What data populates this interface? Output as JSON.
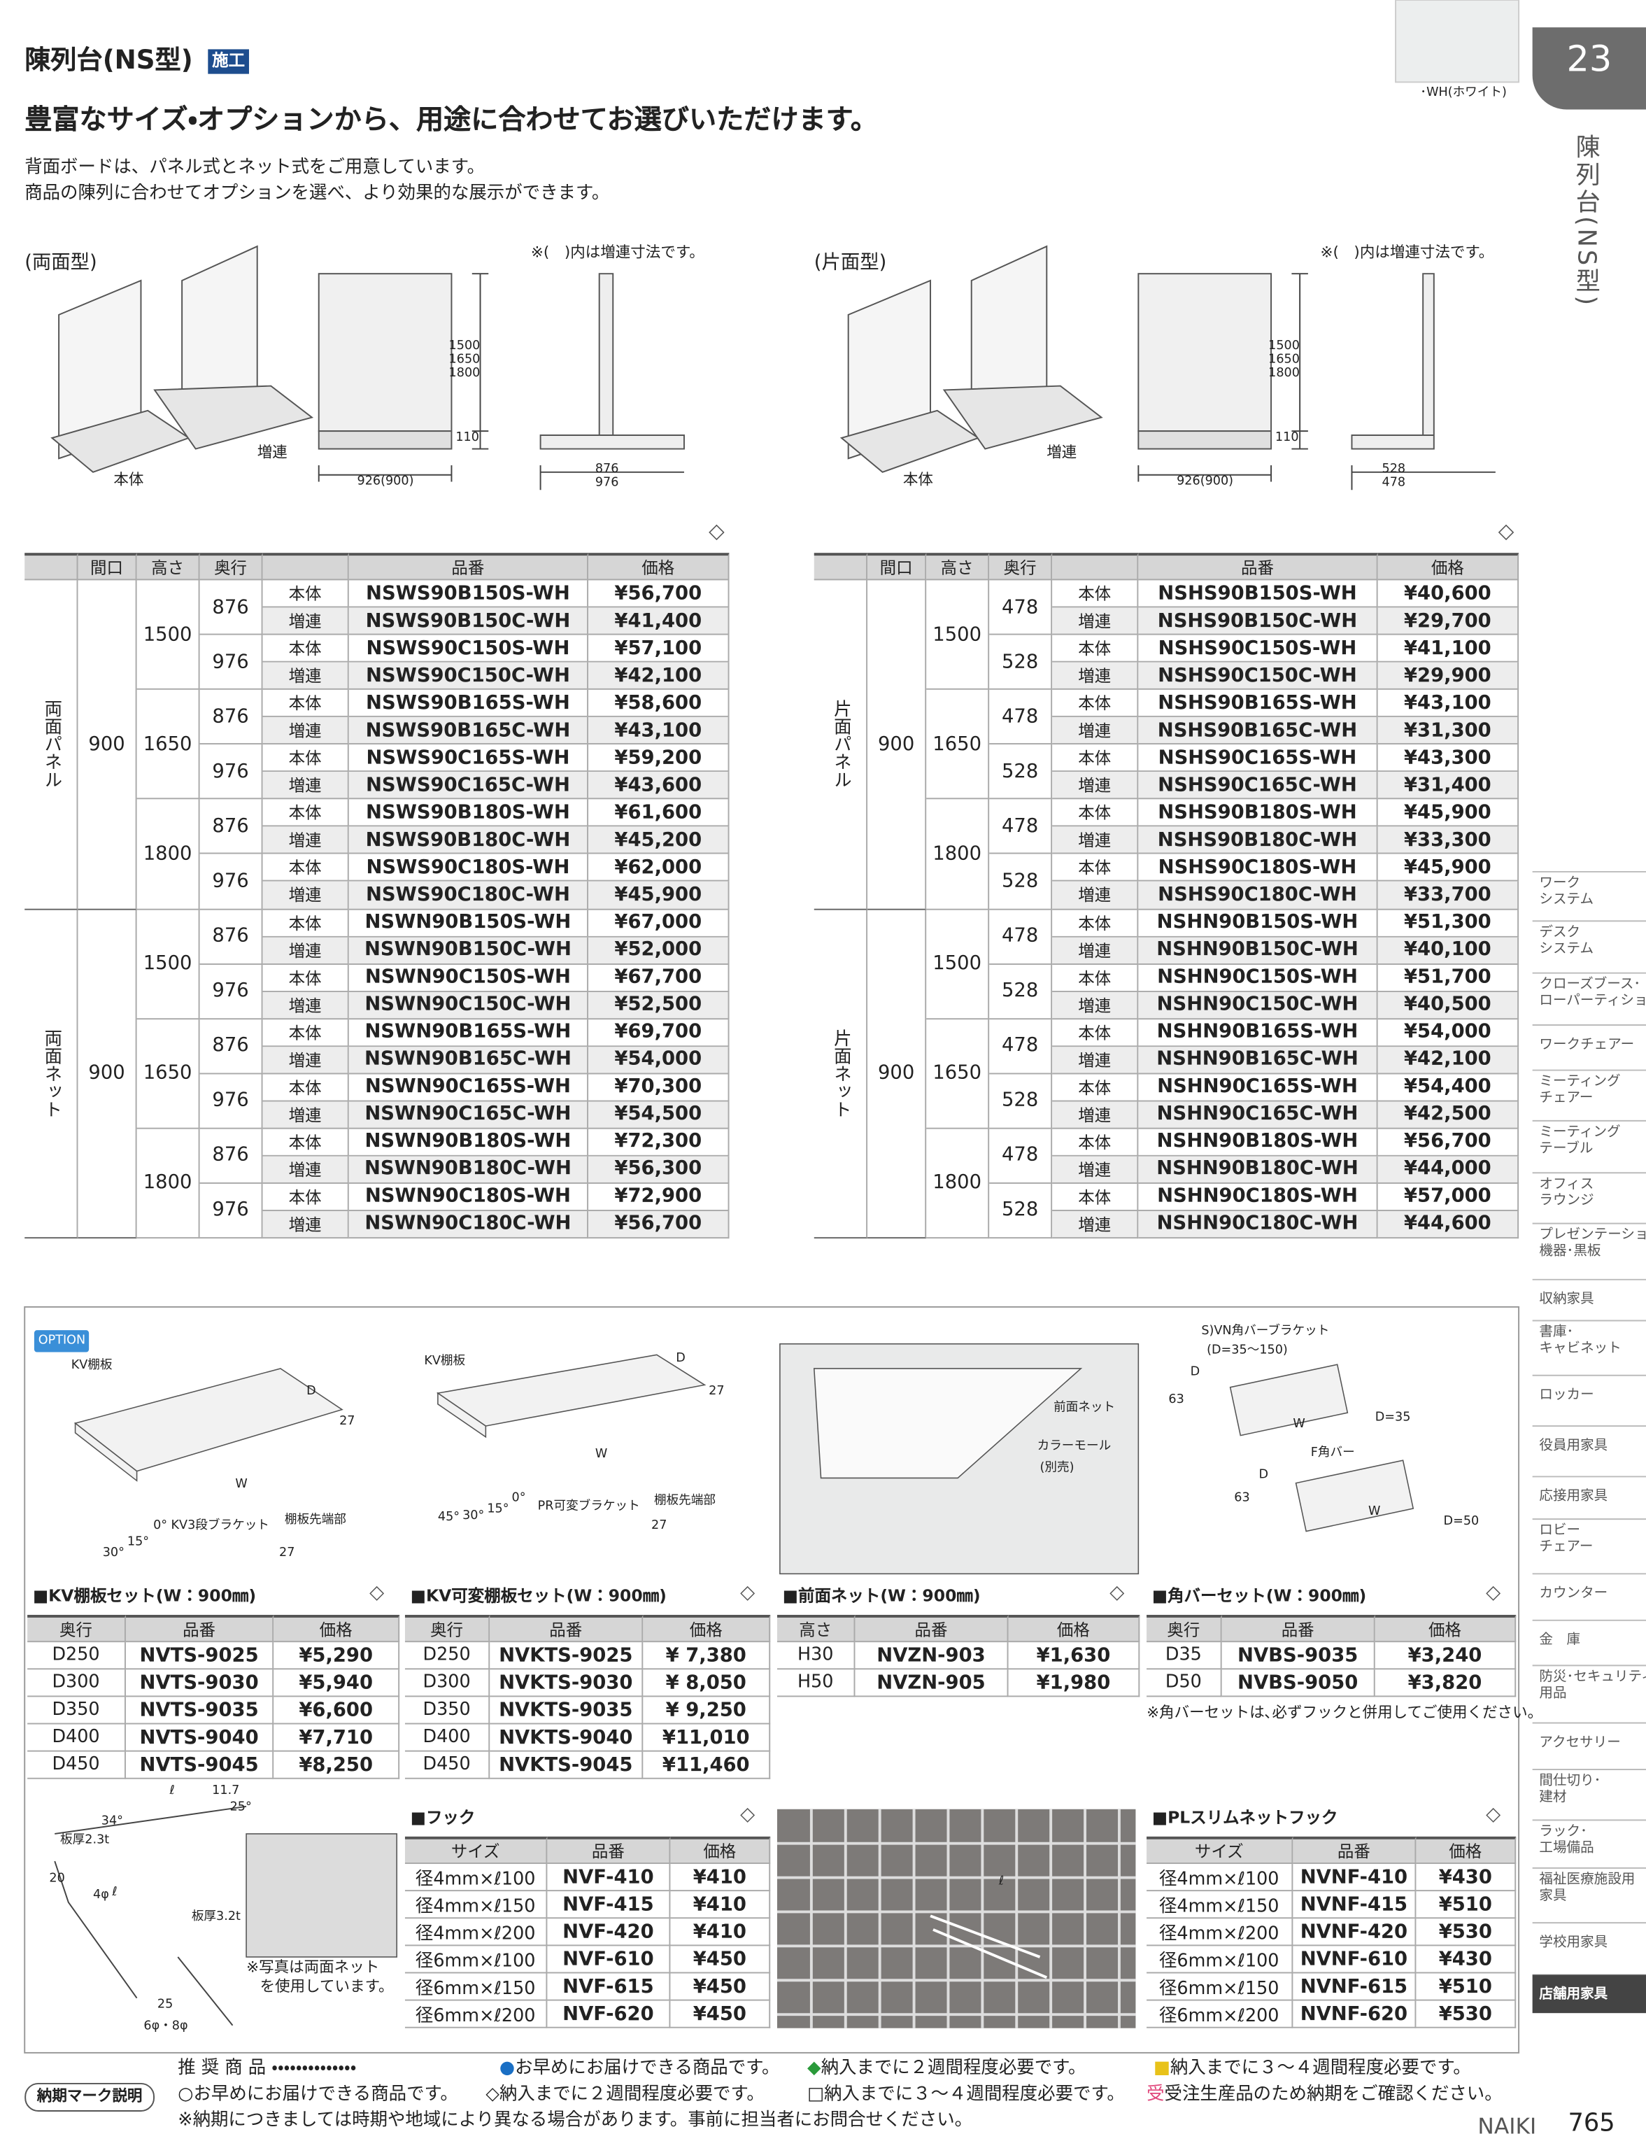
{
  "header": {
    "title": "陳列台(NS型)",
    "badge": "施工",
    "page_tab": "23",
    "color_caption": "･WH(ホワイト)",
    "headline": "豊富なサイズ・オプションから、用途に合わせてお選びいただけます。",
    "intro": [
      "背面ボードは、パネル式とネット式をご用意しています。",
      "商品の陳列に合わせてオプションを選べ、より効果的な展示ができます。"
    ]
  },
  "side": {
    "label": "陳列台(NS型)",
    "nav": [
      [
        "ワーク",
        "システム"
      ],
      [
        "デスク",
        "システム"
      ],
      [
        "クローズブース･",
        "ローパーティション"
      ],
      [
        "ワークチェアー"
      ],
      [
        "ミーティング",
        "チェアー"
      ],
      [
        "ミーティング",
        "テーブル"
      ],
      [
        "オフィス",
        "ラウンジ"
      ],
      [
        "プレゼンテーション",
        "機器･黒板"
      ],
      [
        "収納家具"
      ],
      [
        "書庫･",
        "キャビネット"
      ],
      [
        "ロッカー"
      ],
      [
        "役員用家具"
      ],
      [
        "応接用家具"
      ],
      [
        "ロビー",
        "チェアー"
      ],
      [
        "カウンター"
      ],
      [
        "金　庫"
      ],
      [
        "防災･セキュリティー",
        "用品"
      ],
      [
        "アクセサリー"
      ],
      [
        "間仕切り･",
        "建材"
      ],
      [
        "ラック･",
        "工場備品"
      ],
      [
        "福祉医療施設用",
        "家具"
      ],
      [
        "学校用家具"
      ],
      [
        "店舗用家具"
      ]
    ]
  },
  "models": [
    {
      "label": "(両面型)",
      "note": "※(　)内は増連寸法です。",
      "diagram": {
        "main": "本体",
        "add": "増連",
        "heights": [
          "1500",
          "1650",
          "1800"
        ],
        "base": "110",
        "width": "926(900)",
        "depths": [
          "876",
          "976"
        ]
      },
      "mark": "◇",
      "table": {
        "columns": [
          "間口",
          "高さ",
          "奥行",
          "品番",
          "価格"
        ],
        "groups": [
          {
            "label": "両面パネル",
            "width": "900",
            "heights": [
              {
                "height": "1500",
                "depths": [
                  {
                    "depth": "876",
                    "rows": [
                      [
                        "本体",
                        "NSWS90B150S-WH",
                        "¥56,700"
                      ],
                      [
                        "増連",
                        "NSWS90B150C-WH",
                        "¥41,400"
                      ]
                    ]
                  },
                  {
                    "depth": "976",
                    "rows": [
                      [
                        "本体",
                        "NSWS90C150S-WH",
                        "¥57,100"
                      ],
                      [
                        "増連",
                        "NSWS90C150C-WH",
                        "¥42,100"
                      ]
                    ]
                  }
                ]
              },
              {
                "height": "1650",
                "depths": [
                  {
                    "depth": "876",
                    "rows": [
                      [
                        "本体",
                        "NSWS90B165S-WH",
                        "¥58,600"
                      ],
                      [
                        "増連",
                        "NSWS90B165C-WH",
                        "¥43,100"
                      ]
                    ]
                  },
                  {
                    "depth": "976",
                    "rows": [
                      [
                        "本体",
                        "NSWS90C165S-WH",
                        "¥59,200"
                      ],
                      [
                        "増連",
                        "NSWS90C165C-WH",
                        "¥43,600"
                      ]
                    ]
                  }
                ]
              },
              {
                "height": "1800",
                "depths": [
                  {
                    "depth": "876",
                    "rows": [
                      [
                        "本体",
                        "NSWS90B180S-WH",
                        "¥61,600"
                      ],
                      [
                        "増連",
                        "NSWS90B180C-WH",
                        "¥45,200"
                      ]
                    ]
                  },
                  {
                    "depth": "976",
                    "rows": [
                      [
                        "本体",
                        "NSWS90C180S-WH",
                        "¥62,000"
                      ],
                      [
                        "増連",
                        "NSWS90C180C-WH",
                        "¥45,900"
                      ]
                    ]
                  }
                ]
              }
            ]
          },
          {
            "label": "両面ネット",
            "width": "900",
            "heights": [
              {
                "height": "1500",
                "depths": [
                  {
                    "depth": "876",
                    "rows": [
                      [
                        "本体",
                        "NSWN90B150S-WH",
                        "¥67,000"
                      ],
                      [
                        "増連",
                        "NSWN90B150C-WH",
                        "¥52,000"
                      ]
                    ]
                  },
                  {
                    "depth": "976",
                    "rows": [
                      [
                        "本体",
                        "NSWN90C150S-WH",
                        "¥67,700"
                      ],
                      [
                        "増連",
                        "NSWN90C150C-WH",
                        "¥52,500"
                      ]
                    ]
                  }
                ]
              },
              {
                "height": "1650",
                "depths": [
                  {
                    "depth": "876",
                    "rows": [
                      [
                        "本体",
                        "NSWN90B165S-WH",
                        "¥69,700"
                      ],
                      [
                        "増連",
                        "NSWN90B165C-WH",
                        "¥54,000"
                      ]
                    ]
                  },
                  {
                    "depth": "976",
                    "rows": [
                      [
                        "本体",
                        "NSWN90C165S-WH",
                        "¥70,300"
                      ],
                      [
                        "増連",
                        "NSWN90C165C-WH",
                        "¥54,500"
                      ]
                    ]
                  }
                ]
              },
              {
                "height": "1800",
                "depths": [
                  {
                    "depth": "876",
                    "rows": [
                      [
                        "本体",
                        "NSWN90B180S-WH",
                        "¥72,300"
                      ],
                      [
                        "増連",
                        "NSWN90B180C-WH",
                        "¥56,300"
                      ]
                    ]
                  },
                  {
                    "depth": "976",
                    "rows": [
                      [
                        "本体",
                        "NSWN90C180S-WH",
                        "¥72,900"
                      ],
                      [
                        "増連",
                        "NSWN90C180C-WH",
                        "¥56,700"
                      ]
                    ]
                  }
                ]
              }
            ]
          }
        ]
      }
    },
    {
      "label": "(片面型)",
      "note": "※(　)内は増連寸法です。",
      "diagram": {
        "main": "本体",
        "add": "増連",
        "heights": [
          "1500",
          "1650",
          "1800"
        ],
        "base": "110",
        "width": "926(900)",
        "depths": [
          "528",
          "478"
        ]
      },
      "mark": "◇",
      "table": {
        "columns": [
          "間口",
          "高さ",
          "奥行",
          "品番",
          "価格"
        ],
        "groups": [
          {
            "label": "片面パネル",
            "width": "900",
            "heights": [
              {
                "height": "1500",
                "depths": [
                  {
                    "depth": "478",
                    "rows": [
                      [
                        "本体",
                        "NSHS90B150S-WH",
                        "¥40,600"
                      ],
                      [
                        "増連",
                        "NSHS90B150C-WH",
                        "¥29,700"
                      ]
                    ]
                  },
                  {
                    "depth": "528",
                    "rows": [
                      [
                        "本体",
                        "NSHS90C150S-WH",
                        "¥41,100"
                      ],
                      [
                        "増連",
                        "NSHS90C150C-WH",
                        "¥29,900"
                      ]
                    ]
                  }
                ]
              },
              {
                "height": "1650",
                "depths": [
                  {
                    "depth": "478",
                    "rows": [
                      [
                        "本体",
                        "NSHS90B165S-WH",
                        "¥43,100"
                      ],
                      [
                        "増連",
                        "NSHS90B165C-WH",
                        "¥31,300"
                      ]
                    ]
                  },
                  {
                    "depth": "528",
                    "rows": [
                      [
                        "本体",
                        "NSHS90C165S-WH",
                        "¥43,300"
                      ],
                      [
                        "増連",
                        "NSHS90C165C-WH",
                        "¥31,400"
                      ]
                    ]
                  }
                ]
              },
              {
                "height": "1800",
                "depths": [
                  {
                    "depth": "478",
                    "rows": [
                      [
                        "本体",
                        "NSHS90B180S-WH",
                        "¥45,900"
                      ],
                      [
                        "増連",
                        "NSHS90B180C-WH",
                        "¥33,300"
                      ]
                    ]
                  },
                  {
                    "depth": "528",
                    "rows": [
                      [
                        "本体",
                        "NSHS90C180S-WH",
                        "¥45,900"
                      ],
                      [
                        "増連",
                        "NSHS90C180C-WH",
                        "¥33,700"
                      ]
                    ]
                  }
                ]
              }
            ]
          },
          {
            "label": "片面ネット",
            "width": "900",
            "heights": [
              {
                "height": "1500",
                "depths": [
                  {
                    "depth": "478",
                    "rows": [
                      [
                        "本体",
                        "NSHN90B150S-WH",
                        "¥51,300"
                      ],
                      [
                        "増連",
                        "NSHN90B150C-WH",
                        "¥40,100"
                      ]
                    ]
                  },
                  {
                    "depth": "528",
                    "rows": [
                      [
                        "本体",
                        "NSHN90C150S-WH",
                        "¥51,700"
                      ],
                      [
                        "増連",
                        "NSHN90C150C-WH",
                        "¥40,500"
                      ]
                    ]
                  }
                ]
              },
              {
                "height": "1650",
                "depths": [
                  {
                    "depth": "478",
                    "rows": [
                      [
                        "本体",
                        "NSHN90B165S-WH",
                        "¥54,000"
                      ],
                      [
                        "増連",
                        "NSHN90B165C-WH",
                        "¥42,100"
                      ]
                    ]
                  },
                  {
                    "depth": "528",
                    "rows": [
                      [
                        "本体",
                        "NSHN90C165S-WH",
                        "¥54,400"
                      ],
                      [
                        "増連",
                        "NSHN90C165C-WH",
                        "¥42,500"
                      ]
                    ]
                  }
                ]
              },
              {
                "height": "1800",
                "depths": [
                  {
                    "depth": "478",
                    "rows": [
                      [
                        "本体",
                        "NSHN90B180S-WH",
                        "¥56,700"
                      ],
                      [
                        "増連",
                        "NSHN90B180C-WH",
                        "¥44,000"
                      ]
                    ]
                  },
                  {
                    "depth": "528",
                    "rows": [
                      [
                        "本体",
                        "NSHN90C180S-WH",
                        "¥57,000"
                      ],
                      [
                        "増連",
                        "NSHN90C180C-WH",
                        "¥44,600"
                      ]
                    ]
                  }
                ]
              }
            ]
          }
        ]
      }
    }
  ],
  "options": {
    "badge": "OPTION",
    "figure_labels": [
      "KV棚板",
      "D",
      "27",
      "W",
      "0°",
      "15°",
      "30°",
      "KV3段ブラケット",
      "棚板先端部",
      "27",
      "KV棚板",
      "D",
      "27",
      "W",
      "0°",
      "15°",
      "30°",
      "45°",
      "PR可変ブラケット",
      "棚板先端部",
      "27",
      "前面ネット",
      "カラーモール",
      "(別売)",
      "S)VN角バーブラケット",
      "(D=35～150)",
      "D",
      "63",
      "W",
      "D=35",
      "F角バー",
      "D",
      "63",
      "W",
      "D=50",
      "ℓ",
      "11.7",
      "25°",
      "34°",
      "板厚2.3t",
      "20",
      "4φ",
      "板厚3.2t",
      "ℓ",
      "25",
      "6φ・8φ",
      "ℓ"
    ],
    "photo_note": [
      "※写真は両面ネット",
      "を使用しています。"
    ],
    "tables": [
      {
        "title": "■KV棚板セット(W：900㎜)",
        "mark": "◇",
        "columns": [
          "奥行",
          "品番",
          "価格"
        ],
        "rows": [
          [
            "D250",
            "NVTS-9025",
            "¥5,290"
          ],
          [
            "D300",
            "NVTS-9030",
            "¥5,940"
          ],
          [
            "D350",
            "NVTS-9035",
            "¥6,600"
          ],
          [
            "D400",
            "NVTS-9040",
            "¥7,710"
          ],
          [
            "D450",
            "NVTS-9045",
            "¥8,250"
          ]
        ]
      },
      {
        "title": "■KV可変棚板セット(W：900㎜)",
        "mark": "◇",
        "columns": [
          "奥行",
          "品番",
          "価格"
        ],
        "rows": [
          [
            "D250",
            "NVKTS-9025",
            "¥ 7,380"
          ],
          [
            "D300",
            "NVKTS-9030",
            "¥ 8,050"
          ],
          [
            "D350",
            "NVKTS-9035",
            "¥ 9,250"
          ],
          [
            "D400",
            "NVKTS-9040",
            "¥11,010"
          ],
          [
            "D450",
            "NVKTS-9045",
            "¥11,460"
          ]
        ]
      },
      {
        "title": "■前面ネット(W：900㎜)",
        "mark": "◇",
        "columns": [
          "高さ",
          "品番",
          "価格"
        ],
        "rows": [
          [
            "H30",
            "NVZN-903",
            "¥1,630"
          ],
          [
            "H50",
            "NVZN-905",
            "¥1,980"
          ]
        ]
      },
      {
        "title": "■角バーセット(W：900㎜)",
        "mark": "◇",
        "columns": [
          "奥行",
          "品番",
          "価格"
        ],
        "rows": [
          [
            "D35",
            "NVBS-9035",
            "¥3,240"
          ],
          [
            "D50",
            "NVBS-9050",
            "¥3,820"
          ]
        ],
        "note": "※角バーセットは､必ずフックと併用してご使用ください。"
      },
      {
        "title": "■フック",
        "mark": "◇",
        "columns": [
          "サイズ",
          "品番",
          "価格"
        ],
        "rows": [
          [
            "径4mm×ℓ100",
            "NVF-410",
            "¥410"
          ],
          [
            "径4mm×ℓ150",
            "NVF-415",
            "¥410"
          ],
          [
            "径4mm×ℓ200",
            "NVF-420",
            "¥410"
          ],
          [
            "径6mm×ℓ100",
            "NVF-610",
            "¥450"
          ],
          [
            "径6mm×ℓ150",
            "NVF-615",
            "¥450"
          ],
          [
            "径6mm×ℓ200",
            "NVF-620",
            "¥450"
          ]
        ]
      },
      {
        "title": "■PLスリムネットフック",
        "mark": "◇",
        "columns": [
          "サイズ",
          "品番",
          "価格"
        ],
        "rows": [
          [
            "径4mm×ℓ100",
            "NVNF-410",
            "¥430"
          ],
          [
            "径4mm×ℓ150",
            "NVNF-415",
            "¥510"
          ],
          [
            "径4mm×ℓ200",
            "NVNF-420",
            "¥530"
          ],
          [
            "径6mm×ℓ100",
            "NVNF-610",
            "¥430"
          ],
          [
            "径6mm×ℓ150",
            "NVNF-615",
            "¥510"
          ],
          [
            "径6mm×ℓ200",
            "NVNF-620",
            "¥530"
          ]
        ]
      }
    ]
  },
  "footer": {
    "recommended": "推 奨 商 品 ・・・・・・・・・・・・・・",
    "rec_items": [
      "●お早めにお届けできる商品です。",
      "◆納入までに２週間程度必要です。",
      "■納入までに３～４週間程度必要です。"
    ],
    "legend_title": "納期マーク説明",
    "legend_items": [
      "○お早めにお届けできる商品です。",
      "◇納入までに２週間程度必要です。",
      "□納入までに３～４週間程度必要です。",
      "受受注生産品のため納期をご確認ください。"
    ],
    "note": "※納期につきましては時期や地域により異なる場合があります。事前に担当者にお問合せください。",
    "brand": "NAIKI",
    "page": "765"
  }
}
